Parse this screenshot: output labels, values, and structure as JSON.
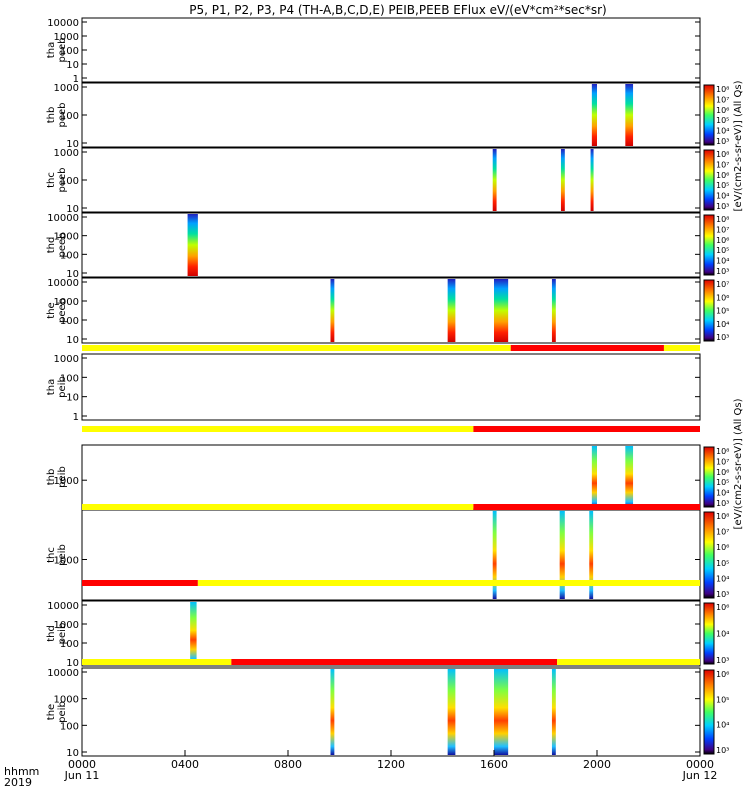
{
  "title": "P5, P1, P2, P3, P4 (TH-A,B,C,D,E) PEIB,PEEB EFlux eV/(eV*cm²*sec*sr)",
  "colors": {
    "quality_good": "#ffff00",
    "quality_bad": "#ff0000",
    "axis": "#000000"
  },
  "chart_data": {
    "type": "heatmap",
    "xaxis": {
      "row1_label": "hhmm",
      "row2_label": "2019",
      "range_hours": [
        0,
        24
      ],
      "ticks": [
        {
          "hour": 0,
          "label": "0000",
          "sub": "Jun 11"
        },
        {
          "hour": 4,
          "label": "0400",
          "sub": ""
        },
        {
          "hour": 8,
          "label": "0800",
          "sub": ""
        },
        {
          "hour": 12,
          "label": "1200",
          "sub": ""
        },
        {
          "hour": 16,
          "label": "1600",
          "sub": ""
        },
        {
          "hour": 20,
          "label": "2000",
          "sub": ""
        },
        {
          "hour": 24,
          "label": "0000",
          "sub": "Jun 12"
        }
      ]
    },
    "colorbar_peeb_label": "[eV/(cm2-s-sr-eV)] (All Qs)",
    "colorbar_peib_label": "[eV/(cm2-s-sr-eV)] (All Qs)",
    "panels": [
      {
        "id": "tha-peeb",
        "ylabel": [
          "tha",
          "peeb"
        ],
        "yticks": [
          "10000",
          "1000",
          "100",
          "10",
          "1"
        ],
        "colorbar": false,
        "cb_ticks": [],
        "bursts": []
      },
      {
        "id": "thb-peeb",
        "ylabel": [
          "thb",
          "peeb"
        ],
        "yticks": [
          "1000",
          "100",
          "10"
        ],
        "colorbar": true,
        "cb_ticks": [
          "10⁸",
          "10⁷",
          "10⁶",
          "10⁵",
          "10⁴",
          "10³"
        ],
        "bursts": [
          {
            "start": 19.8,
            "end": 20.0
          },
          {
            "start": 21.1,
            "end": 21.4
          }
        ]
      },
      {
        "id": "thc-peeb",
        "ylabel": [
          "thc",
          "peeb"
        ],
        "yticks": [
          "1000",
          "100",
          "10"
        ],
        "colorbar": true,
        "cb_ticks": [
          "10⁸",
          "10⁷",
          "10⁶",
          "10⁵",
          "10⁴",
          "10³"
        ],
        "bursts": [
          {
            "start": 15.95,
            "end": 16.1
          },
          {
            "start": 18.6,
            "end": 18.75
          },
          {
            "start": 19.75,
            "end": 19.85
          }
        ]
      },
      {
        "id": "thd-peeb",
        "ylabel": [
          "thd",
          "peeb"
        ],
        "yticks": [
          "10000",
          "1000",
          "100",
          "10"
        ],
        "colorbar": true,
        "cb_ticks": [
          "10⁸",
          "10⁷",
          "10⁶",
          "10⁵",
          "10⁴",
          "10³"
        ],
        "bursts": [
          {
            "start": 4.1,
            "end": 4.5
          }
        ]
      },
      {
        "id": "the-peeb",
        "ylabel": [
          "the",
          "peeb"
        ],
        "yticks": [
          "10000",
          "1000",
          "100",
          "10"
        ],
        "colorbar": true,
        "cb_ticks": [
          "10⁷",
          "10⁶",
          "10⁵",
          "10⁴",
          "10³"
        ],
        "bursts": [
          {
            "start": 9.65,
            "end": 9.8
          },
          {
            "start": 14.2,
            "end": 14.5
          },
          {
            "start": 16.0,
            "end": 16.55
          },
          {
            "start": 18.25,
            "end": 18.4
          }
        ],
        "quality_bar": [
          {
            "start": 0,
            "end": 16.65,
            "q": "good"
          },
          {
            "start": 16.65,
            "end": 22.6,
            "q": "bad"
          },
          {
            "start": 22.6,
            "end": 24,
            "q": "good"
          }
        ]
      },
      {
        "id": "tha-peib",
        "ylabel": [
          "tha",
          "peib"
        ],
        "yticks": [
          "1000",
          "100",
          "10",
          "1"
        ],
        "colorbar": false,
        "cb_ticks": [],
        "bursts": []
      },
      {
        "id": "thb-peib",
        "ylabel": [
          "thb",
          "peib"
        ],
        "yticks": [
          "1000"
        ],
        "colorbar": true,
        "cb_ticks": [
          "10⁸",
          "10⁷",
          "10⁶",
          "10⁵",
          "10⁴",
          "10³"
        ],
        "bursts": [
          {
            "start": 19.8,
            "end": 20.0
          },
          {
            "start": 21.1,
            "end": 21.4
          }
        ],
        "quality_bar": [
          {
            "start": 0,
            "end": 15.2,
            "q": "good"
          },
          {
            "start": 15.2,
            "end": 24,
            "q": "bad"
          }
        ]
      },
      {
        "id": "thc-peib",
        "ylabel": [
          "thc",
          "peib"
        ],
        "yticks": [
          "1000"
        ],
        "colorbar": true,
        "cb_ticks": [
          "10⁸",
          "10⁷",
          "10⁶",
          "10⁵",
          "10⁴",
          "10³"
        ],
        "bursts": [
          {
            "start": 15.95,
            "end": 16.1
          },
          {
            "start": 18.55,
            "end": 18.75
          },
          {
            "start": 19.7,
            "end": 19.85
          }
        ],
        "quality_bar": [
          {
            "start": 0,
            "end": 15.2,
            "q": "good"
          },
          {
            "start": 15.2,
            "end": 24,
            "q": "bad"
          }
        ]
      },
      {
        "id": "thd-peib",
        "ylabel": [
          "thd",
          "peib"
        ],
        "yticks": [
          "10000",
          "1000",
          "100",
          "10"
        ],
        "colorbar": true,
        "cb_ticks": [
          "10⁶",
          "10⁴",
          "10³"
        ],
        "bursts": [
          {
            "start": 4.2,
            "end": 4.45
          }
        ],
        "quality_bar": [
          {
            "start": 0,
            "end": 4.5,
            "q": "bad"
          },
          {
            "start": 4.5,
            "end": 24,
            "q": "good"
          }
        ]
      },
      {
        "id": "the-peib",
        "ylabel": [
          "the",
          "peib"
        ],
        "yticks": [
          "10000",
          "1000",
          "100",
          "10"
        ],
        "colorbar": true,
        "cb_ticks": [
          "10⁶",
          "10⁵",
          "10⁴",
          "10³"
        ],
        "bursts": [
          {
            "start": 9.65,
            "end": 9.8
          },
          {
            "start": 14.2,
            "end": 14.5
          },
          {
            "start": 16.0,
            "end": 16.55
          },
          {
            "start": 18.25,
            "end": 18.4
          }
        ],
        "quality_bar": [
          {
            "start": 0,
            "end": 5.8,
            "q": "good"
          },
          {
            "start": 5.8,
            "end": 18.45,
            "q": "bad"
          },
          {
            "start": 18.45,
            "end": 24,
            "q": "good"
          }
        ]
      }
    ]
  }
}
